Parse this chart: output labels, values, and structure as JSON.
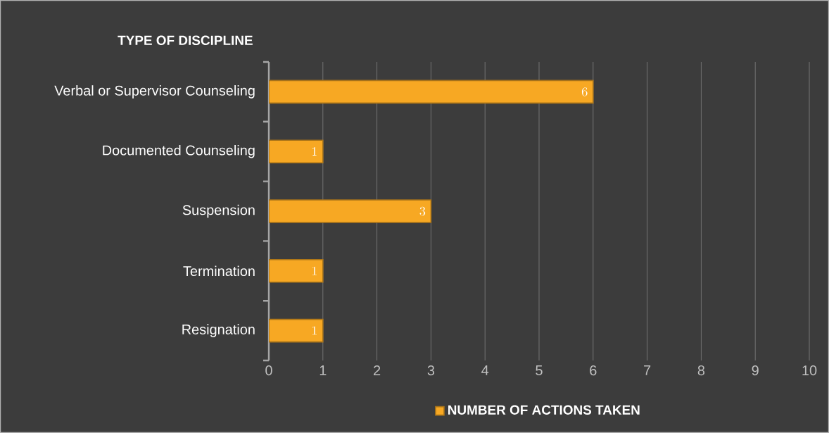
{
  "chart_data": {
    "type": "bar",
    "orientation": "horizontal",
    "ylabel": "TYPE OF DISCIPLINE",
    "categories": [
      "Verbal or Supervisor Counseling",
      "Documented Counseling",
      "Suspension",
      "Termination",
      "Resignation"
    ],
    "series": [
      {
        "name": "NUMBER OF ACTIONS TAKEN",
        "color": "#f7a823",
        "values": [
          6,
          1,
          3,
          1,
          1
        ]
      }
    ],
    "xlim": [
      0,
      10
    ],
    "xticks": [
      0,
      1,
      2,
      3,
      4,
      5,
      6,
      7,
      8,
      9,
      10
    ],
    "grid": "x",
    "legend": "bottom",
    "data_labels": true
  }
}
